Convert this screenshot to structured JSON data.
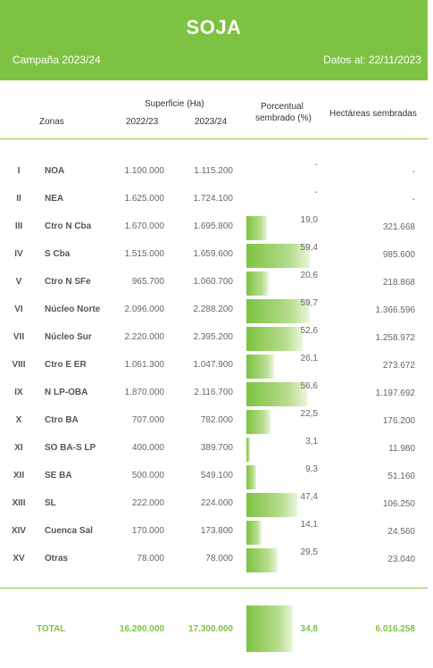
{
  "header": {
    "title": "SOJA",
    "campaign": "Campaña 2023/24",
    "date": "Datos al: 22/11/2023"
  },
  "columns": {
    "zonas": "Zonas",
    "superficie": "Superficie (Ha)",
    "y1": "2022/23",
    "y2": "2023/24",
    "porcentual_1": "Porcentual",
    "porcentual_2": "sembrado (%)",
    "hectareas": "Hectáreas sembradas"
  },
  "rows": [
    {
      "num": "I",
      "zone": "NOA",
      "s2223": "1.100.000",
      "s2324": "1.115.200",
      "pct": "-",
      "pct_value": 0,
      "ha": "-"
    },
    {
      "num": "II",
      "zone": "NEA",
      "s2223": "1.625.000",
      "s2324": "1.724.100",
      "pct": "-",
      "pct_value": 0,
      "ha": "-"
    },
    {
      "num": "III",
      "zone": "Ctro N Cba",
      "s2223": "1.670.000",
      "s2324": "1.695.800",
      "pct": "19,0",
      "pct_value": 19.0,
      "ha": "321.668"
    },
    {
      "num": "IV",
      "zone": "S Cba",
      "s2223": "1.515.000",
      "s2324": "1.659.600",
      "pct": "59,4",
      "pct_value": 59.4,
      "ha": "985.600"
    },
    {
      "num": "V",
      "zone": "Ctro N SFe",
      "s2223": "965.700",
      "s2324": "1.060.700",
      "pct": "20,6",
      "pct_value": 20.6,
      "ha": "218.868"
    },
    {
      "num": "VI",
      "zone": "Núcleo Norte",
      "s2223": "2.096.000",
      "s2324": "2.288.200",
      "pct": "59,7",
      "pct_value": 59.7,
      "ha": "1.366.596"
    },
    {
      "num": "VII",
      "zone": "Núcleo Sur",
      "s2223": "2.220.000",
      "s2324": "2.395.200",
      "pct": "52,6",
      "pct_value": 52.6,
      "ha": "1.258.972"
    },
    {
      "num": "VIII",
      "zone": "Ctro E ER",
      "s2223": "1.061.300",
      "s2324": "1.047.900",
      "pct": "26,1",
      "pct_value": 26.1,
      "ha": "273.672"
    },
    {
      "num": "IX",
      "zone": "N LP-OBA",
      "s2223": "1.870.000",
      "s2324": "2.116.700",
      "pct": "56,6",
      "pct_value": 56.6,
      "ha": "1.197.692"
    },
    {
      "num": "X",
      "zone": "Ctro BA",
      "s2223": "707.000",
      "s2324": "782.000",
      "pct": "22,5",
      "pct_value": 22.5,
      "ha": "176.200"
    },
    {
      "num": "XI",
      "zone": "SO BA-S LP",
      "s2223": "400.000",
      "s2324": "389.700",
      "pct": "3,1",
      "pct_value": 3.1,
      "ha": "11.980"
    },
    {
      "num": "XII",
      "zone": "SE BA",
      "s2223": "500.000",
      "s2324": "549.100",
      "pct": "9,3",
      "pct_value": 9.3,
      "ha": "51.160"
    },
    {
      "num": "XIII",
      "zone": "SL",
      "s2223": "222.000",
      "s2324": "224.000",
      "pct": "47,4",
      "pct_value": 47.4,
      "ha": "106.250"
    },
    {
      "num": "XIV",
      "zone": "Cuenca Sal",
      "s2223": "170.000",
      "s2324": "173.800",
      "pct": "14,1",
      "pct_value": 14.1,
      "ha": "24.560"
    },
    {
      "num": "XV",
      "zone": "Otras",
      "s2223": "78.000",
      "s2324": "78.000",
      "pct": "29,5",
      "pct_value": 29.5,
      "ha": "23.040"
    }
  ],
  "total": {
    "label": "TOTAL",
    "s2223": "16.200.000",
    "s2324": "17.300.000",
    "pct": "34,8",
    "pct_value": 34.8,
    "ha": "6.016.258"
  },
  "colors": {
    "accent": "#7dc242",
    "bar_light": "#b8dd8e"
  }
}
